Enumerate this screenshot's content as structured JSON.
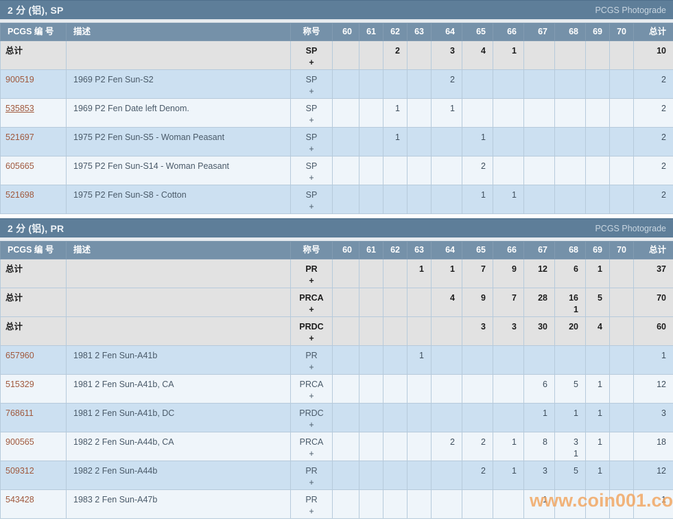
{
  "columns": {
    "pcgs": "PCGS 编 号",
    "desc": "描述",
    "designation": "称号",
    "grades": [
      "60",
      "61",
      "62",
      "63",
      "64",
      "65",
      "66",
      "67",
      "68",
      "69",
      "70"
    ],
    "total": "总计"
  },
  "labels": {
    "total_row": "总计",
    "plus": "+"
  },
  "watermark": "www.coin001.com",
  "colors": {
    "section_header": "#5e7e99",
    "table_header": "#7591a9",
    "total_row_bg": "#e2e2e2",
    "row_blue": "#cce0f1",
    "row_light": "#eff5fa",
    "pcgs_link": "#a0593d",
    "watermark": "#f2a55e"
  },
  "sections": [
    {
      "key": "sp",
      "title": "2 分 (铝), SP",
      "photograde": "PCGS Photograde",
      "rows": [
        {
          "kind": "total",
          "label": "总计",
          "desc": "",
          "designation": "SP",
          "plus": "+",
          "grades": {
            "62": "2",
            "64": "3",
            "65": "4",
            "66": "1"
          },
          "total": "10"
        },
        {
          "kind": "detail",
          "pcgs": "900519",
          "underline": false,
          "desc": "1969 P2 Fen Sun-S2",
          "designation": "SP",
          "plus": "+",
          "grades": {
            "64": "2"
          },
          "total": "2"
        },
        {
          "kind": "detail",
          "pcgs": "535853",
          "underline": true,
          "desc": "1969 P2 Fen Date left Denom.",
          "designation": "SP",
          "plus": "+",
          "grades": {
            "62": "1",
            "64": "1"
          },
          "total": "2"
        },
        {
          "kind": "detail",
          "pcgs": "521697",
          "underline": false,
          "desc": "1975 P2 Fen Sun-S5 - Woman Peasant",
          "designation": "SP",
          "plus": "+",
          "grades": {
            "62": "1",
            "65": "1"
          },
          "total": "2"
        },
        {
          "kind": "detail",
          "pcgs": "605665",
          "underline": false,
          "desc": "1975 P2 Fen Sun-S14 - Woman Peasant",
          "designation": "SP",
          "plus": "+",
          "grades": {
            "65": "2"
          },
          "total": "2"
        },
        {
          "kind": "detail",
          "pcgs": "521698",
          "underline": false,
          "desc": "1975 P2 Fen Sun-S8 - Cotton",
          "designation": "SP",
          "plus": "+",
          "grades": {
            "65": "1",
            "66": "1"
          },
          "total": "2"
        }
      ]
    },
    {
      "key": "pr",
      "title": "2 分 (铝), PR",
      "photograde": "PCGS Photograde",
      "rows": [
        {
          "kind": "total",
          "label": "总计",
          "desc": "",
          "designation": "PR",
          "plus": "+",
          "grades": {
            "63": "1",
            "64": "1",
            "65": "7",
            "66": "9",
            "67": "12",
            "68": "6",
            "69": "1"
          },
          "total": "37"
        },
        {
          "kind": "total",
          "label": "总计",
          "desc": "",
          "designation": "PRCA",
          "plus": "+",
          "grades": {
            "64": "4",
            "65": "9",
            "66": "7",
            "67": "28",
            "68": [
              "16",
              "1"
            ],
            "69": "5"
          },
          "total": "70"
        },
        {
          "kind": "total",
          "label": "总计",
          "desc": "",
          "designation": "PRDC",
          "plus": "+",
          "grades": {
            "65": "3",
            "66": "3",
            "67": "30",
            "68": "20",
            "69": "4"
          },
          "total": "60"
        },
        {
          "kind": "detail",
          "pcgs": "657960",
          "underline": false,
          "desc": "1981 2 Fen Sun-A41b",
          "designation": "PR",
          "plus": "+",
          "grades": {
            "63": "1"
          },
          "total": "1"
        },
        {
          "kind": "detail",
          "pcgs": "515329",
          "underline": false,
          "desc": "1981 2 Fen Sun-A41b, CA",
          "designation": "PRCA",
          "plus": "+",
          "grades": {
            "67": "6",
            "68": "5",
            "69": "1"
          },
          "total": "12"
        },
        {
          "kind": "detail",
          "pcgs": "768611",
          "underline": false,
          "desc": "1981 2 Fen Sun-A41b, DC",
          "designation": "PRDC",
          "plus": "+",
          "grades": {
            "67": "1",
            "68": "1",
            "69": "1"
          },
          "total": "3"
        },
        {
          "kind": "detail",
          "pcgs": "900565",
          "underline": false,
          "desc": "1982 2 Fen Sun-A44b, CA",
          "designation": "PRCA",
          "plus": "+",
          "grades": {
            "64": "2",
            "65": "2",
            "66": "1",
            "67": "8",
            "68": [
              "3",
              "1"
            ],
            "69": "1"
          },
          "total": "18"
        },
        {
          "kind": "detail",
          "pcgs": "509312",
          "underline": false,
          "desc": "1982 2 Fen Sun-A44b",
          "designation": "PR",
          "plus": "+",
          "grades": {
            "65": "2",
            "66": "1",
            "67": "3",
            "68": "5",
            "69": "1"
          },
          "total": "12"
        },
        {
          "kind": "detail",
          "pcgs": "543428",
          "underline": false,
          "desc": "1983 2 Fen Sun-A47b",
          "designation": "PR",
          "plus": "+",
          "grades": {
            "67": "1"
          },
          "total": "1"
        }
      ]
    }
  ]
}
